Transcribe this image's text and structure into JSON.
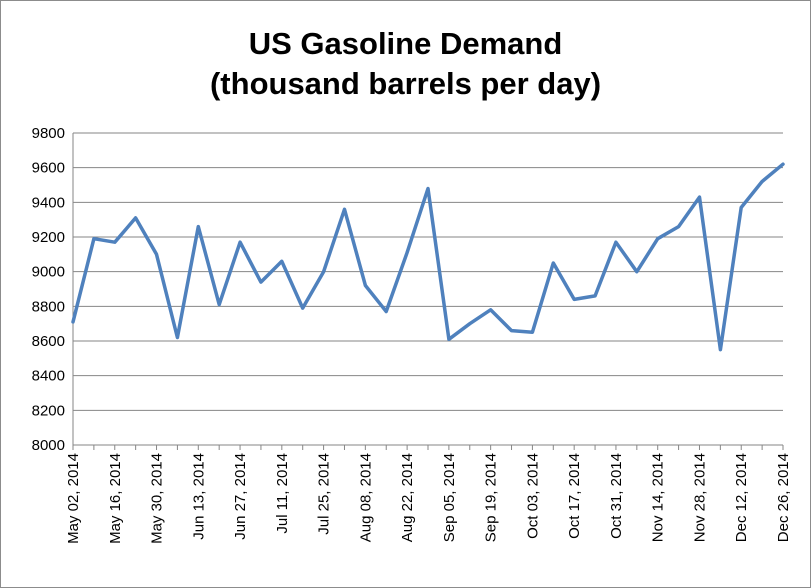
{
  "chart_data": {
    "type": "line",
    "title_lines": [
      "US Gasoline Demand",
      "(thousand barrels per day)"
    ],
    "xlabel": "",
    "ylabel": "",
    "ylim": [
      8000,
      9800
    ],
    "y_ticks": [
      8000,
      8200,
      8400,
      8600,
      8800,
      9000,
      9200,
      9400,
      9600,
      9800
    ],
    "grid": true,
    "legend": "none",
    "line_color": "#4f81bd",
    "x": [
      "May 02, 2014",
      "May 09, 2014",
      "May 16, 2014",
      "May 23, 2014",
      "May 30, 2014",
      "Jun 06, 2014",
      "Jun 13, 2014",
      "Jun 20, 2014",
      "Jun 27, 2014",
      "Jul 04, 2014",
      "Jul 11, 2014",
      "Jul 18, 2014",
      "Jul 25, 2014",
      "Aug 01, 2014",
      "Aug 08, 2014",
      "Aug 15, 2014",
      "Aug 22, 2014",
      "Aug 29, 2014",
      "Sep 05, 2014",
      "Sep 12, 2014",
      "Sep 19, 2014",
      "Sep 26, 2014",
      "Oct 03, 2014",
      "Oct 10, 2014",
      "Oct 17, 2014",
      "Oct 24, 2014",
      "Oct 31, 2014",
      "Nov 07, 2014",
      "Nov 14, 2014",
      "Nov 21, 2014",
      "Nov 28, 2014",
      "Dec 05, 2014",
      "Dec 12, 2014",
      "Dec 19, 2014",
      "Dec 26, 2014"
    ],
    "x_tick_labels": [
      "May 02, 2014",
      "May 16, 2014",
      "May 30, 2014",
      "Jun 13, 2014",
      "Jun 27, 2014",
      "Jul 11, 2014",
      "Jul 25, 2014",
      "Aug 08, 2014",
      "Aug 22, 2014",
      "Sep 05, 2014",
      "Sep 19, 2014",
      "Oct 03, 2014",
      "Oct 17, 2014",
      "Oct 31, 2014",
      "Nov 14, 2014",
      "Nov 28, 2014",
      "Dec 12, 2014",
      "Dec 26, 2014"
    ],
    "values": [
      8710,
      9190,
      9170,
      9310,
      9100,
      8620,
      9260,
      8810,
      9170,
      8940,
      9060,
      8790,
      9000,
      9360,
      8920,
      8770,
      9110,
      9480,
      8610,
      8700,
      8780,
      8660,
      8650,
      9050,
      8840,
      8860,
      9170,
      9000,
      9190,
      9260,
      9430,
      8550,
      9370,
      9520,
      9620
    ]
  }
}
